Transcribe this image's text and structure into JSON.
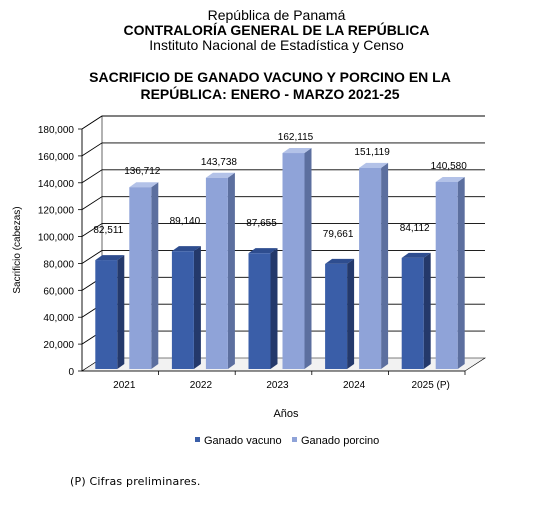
{
  "header": {
    "line1": "República de Panamá",
    "line2": "CONTRALORÍA GENERAL DE LA REPÚBLICA",
    "line3": "Instituto Nacional de Estadística y Censo"
  },
  "footnote": "(P) Cifras preliminares.",
  "colors": {
    "ganado_vacuno": "#3a5ea8",
    "ganado_porcino": "#8fa3d8"
  },
  "chart_data": {
    "type": "bar",
    "title": "SACRIFICIO DE GANADO VACUNO Y PORCINO EN LA REPÚBLICA: ENERO - MARZO 2021-25",
    "title_lines": [
      "SACRIFICIO DE GANADO VACUNO Y PORCINO EN LA",
      "REPÚBLICA: ENERO - MARZO 2021-25"
    ],
    "xlabel": "Años",
    "ylabel": "Sacrificio (cabezas)",
    "categories": [
      "2021",
      "2022",
      "2023",
      "2024",
      "2025 (P)"
    ],
    "ylim": [
      0,
      180000
    ],
    "yticks": [
      "0",
      "20,000",
      "40,000",
      "60,000",
      "80,000",
      "100,000",
      "120,000",
      "140,000",
      "160,000",
      "180,000"
    ],
    "grid": true,
    "legend_position": "bottom",
    "series": [
      {
        "name": "Ganado vacuno",
        "values": [
          82511,
          89140,
          87655,
          79661,
          84112
        ],
        "labels": [
          "82,511",
          "89,140",
          "87,655",
          "79,661",
          "84,112"
        ]
      },
      {
        "name": "Ganado porcino",
        "values": [
          136712,
          143738,
          162115,
          151119,
          140580
        ],
        "labels": [
          "136,712",
          "143,738",
          "162,115",
          "151,119",
          "140,580"
        ]
      }
    ]
  }
}
